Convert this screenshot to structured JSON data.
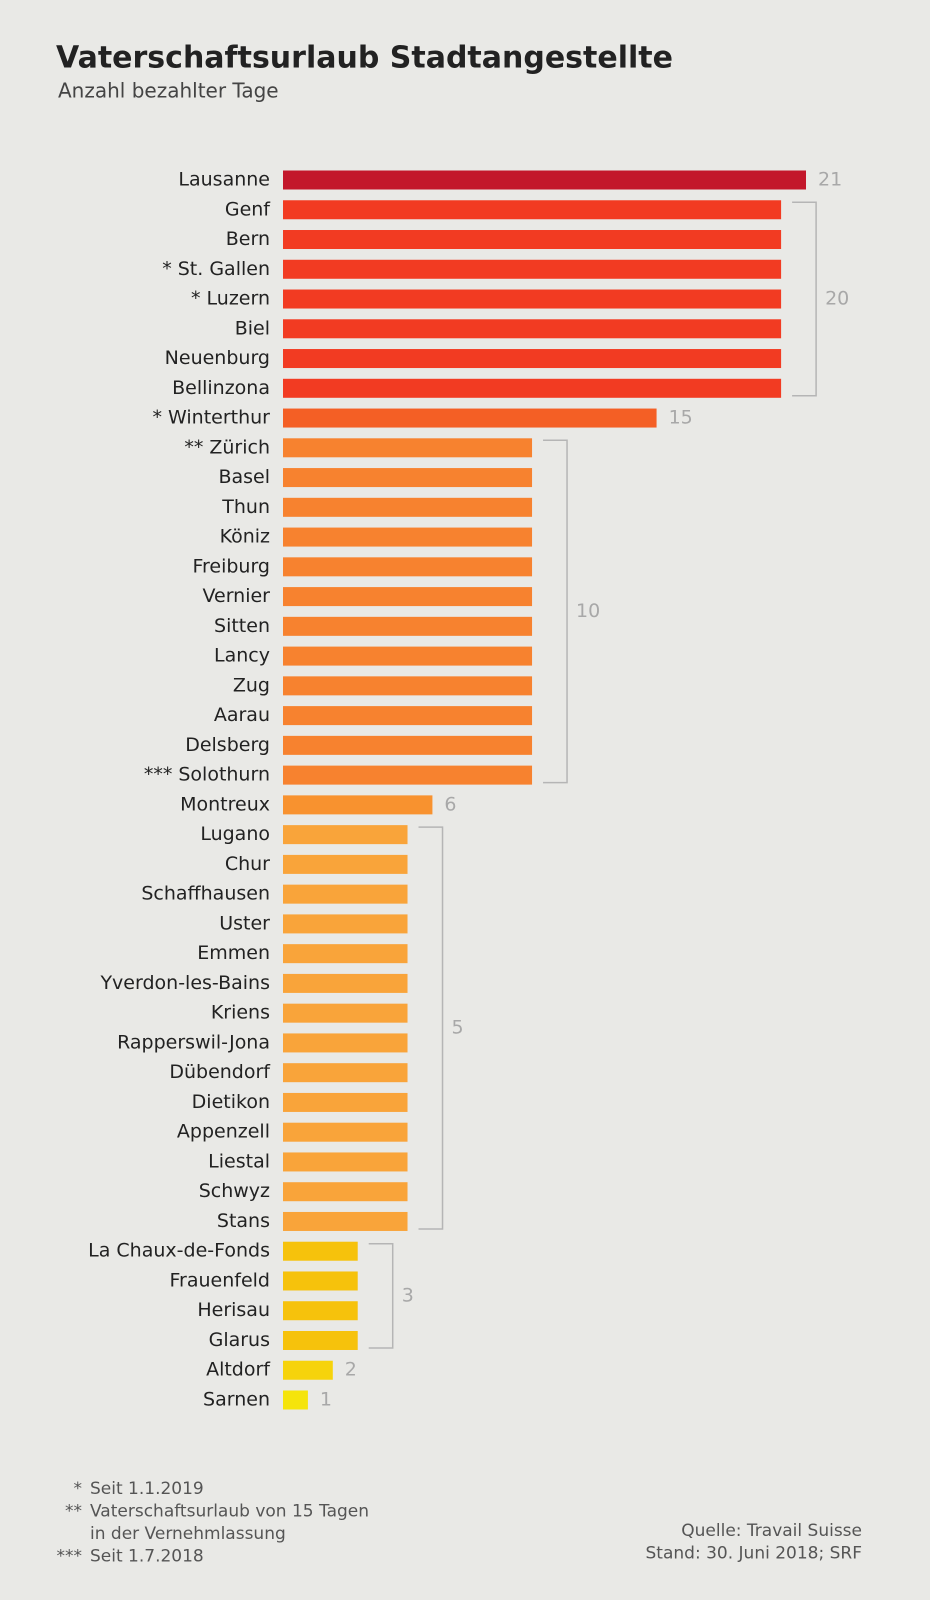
{
  "chart_data": {
    "type": "bar",
    "orientation": "horizontal",
    "title": "Vaterschaftsurlaub Stadtangestellte",
    "subtitle": "Anzahl bezahlter Tage",
    "categories": [
      "Lausanne",
      "Genf",
      "Bern",
      "* St. Gallen",
      "* Luzern",
      "Biel",
      "Neuenburg",
      "Bellinzona",
      "* Winterthur",
      "** Zürich",
      "Basel",
      "Thun",
      "Köniz",
      "Freiburg",
      "Vernier",
      "Sitten",
      "Lancy",
      "Zug",
      "Aarau",
      "Delsberg",
      "*** Solothurn",
      "Montreux",
      "Lugano",
      "Chur",
      "Schaffhausen",
      "Uster",
      "Emmen",
      "Yverdon-les-Bains",
      "Kriens",
      "Rapperswil-Jona",
      "Dübendorf",
      "Dietikon",
      "Appenzell",
      "Liestal",
      "Schwyz",
      "Stans",
      "La Chaux-de-Fonds",
      "Frauenfeld",
      "Herisau",
      "Glarus",
      "Altdorf",
      "Sarnen"
    ],
    "values": [
      21,
      20,
      20,
      20,
      20,
      20,
      20,
      20,
      15,
      10,
      10,
      10,
      10,
      10,
      10,
      10,
      10,
      10,
      10,
      10,
      10,
      6,
      5,
      5,
      5,
      5,
      5,
      5,
      5,
      5,
      5,
      5,
      5,
      5,
      5,
      5,
      3,
      3,
      3,
      3,
      2,
      1
    ],
    "colors": [
      "#c3172b",
      "#f23b22",
      "#f23b22",
      "#f23b22",
      "#f23b22",
      "#f23b22",
      "#f23b22",
      "#f23b22",
      "#f45f25",
      "#f7822f",
      "#f7822f",
      "#f7822f",
      "#f7822f",
      "#f7822f",
      "#f7822f",
      "#f7822f",
      "#f7822f",
      "#f7822f",
      "#f7822f",
      "#f7822f",
      "#f7822f",
      "#f8922f",
      "#f9a43a",
      "#f9a43a",
      "#f9a43a",
      "#f9a43a",
      "#f9a43a",
      "#f9a43a",
      "#f9a43a",
      "#f9a43a",
      "#f9a43a",
      "#f9a43a",
      "#f9a43a",
      "#f9a43a",
      "#f9a43a",
      "#f9a43a",
      "#f6c20c",
      "#f6c20c",
      "#f6c20c",
      "#f6c20c",
      "#f6d30c",
      "#f5e40c"
    ],
    "notes": [
      {
        "mark": "*",
        "lines": [
          "Seit 1.1.2019"
        ]
      },
      {
        "mark": "**",
        "lines": [
          "Vaterschaftsurlaub von 15 Tagen",
          "in der Vernehmlassung"
        ]
      },
      {
        "mark": "***",
        "lines": [
          "Seit 1.7.2018"
        ]
      }
    ],
    "source": [
      "Quelle: Travail Suisse",
      "Stand: 30. Juni 2018; SRF"
    ]
  }
}
